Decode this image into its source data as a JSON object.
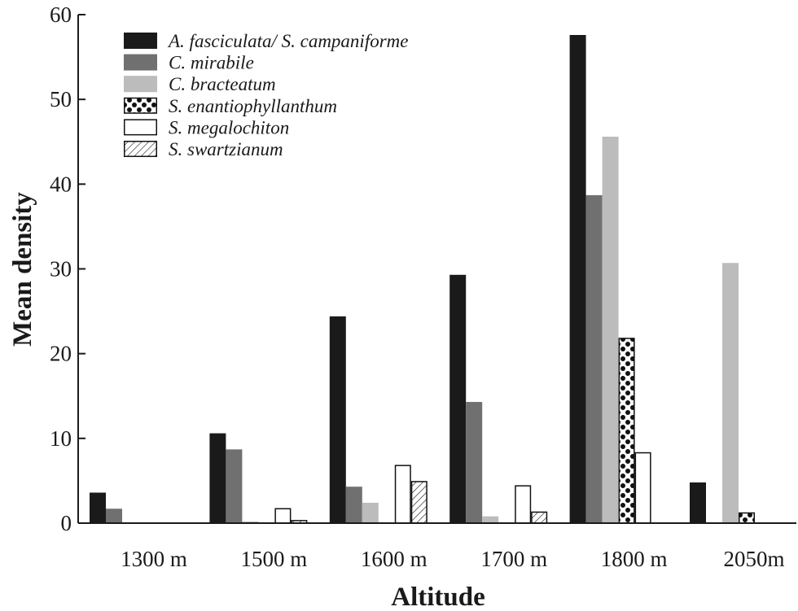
{
  "chart_data": {
    "type": "bar",
    "title": "",
    "xlabel": "Altitude",
    "ylabel": "Mean density",
    "ylim": [
      0,
      60
    ],
    "yticks": [
      "0",
      "10",
      "20",
      "30",
      "40",
      "50",
      "60"
    ],
    "categories": [
      "1300 m",
      "1500 m",
      "1600 m",
      "1700 m",
      "1800 m",
      "2050m"
    ],
    "legend_position": "top-left",
    "grid": false,
    "series": [
      {
        "name": "A. fasciculata/ S. campaniforme",
        "fill": "#1a1a1a",
        "pattern": "solid",
        "values": [
          3.6,
          10.6,
          24.4,
          29.3,
          57.6,
          4.8
        ]
      },
      {
        "name": "C. mirabile",
        "fill": "#707070",
        "pattern": "solid",
        "values": [
          1.7,
          8.7,
          4.3,
          14.3,
          38.7,
          0
        ]
      },
      {
        "name": "C. bracteatum",
        "fill": "#bcbcbc",
        "pattern": "solid",
        "values": [
          0,
          0.2,
          2.4,
          0.8,
          45.6,
          30.7
        ]
      },
      {
        "name": "S. enantiophyllanthum",
        "fill": "#ffffff",
        "pattern": "dots",
        "values": [
          0,
          0,
          0,
          0,
          21.8,
          1.2
        ]
      },
      {
        "name": "S. megalochiton",
        "fill": "#ffffff",
        "pattern": "open",
        "values": [
          0,
          1.7,
          6.8,
          4.4,
          8.3,
          0
        ]
      },
      {
        "name": "S. swartzianum",
        "fill": "#ffffff",
        "pattern": "hatch",
        "values": [
          0,
          0.3,
          4.9,
          1.3,
          0,
          0
        ]
      }
    ]
  }
}
